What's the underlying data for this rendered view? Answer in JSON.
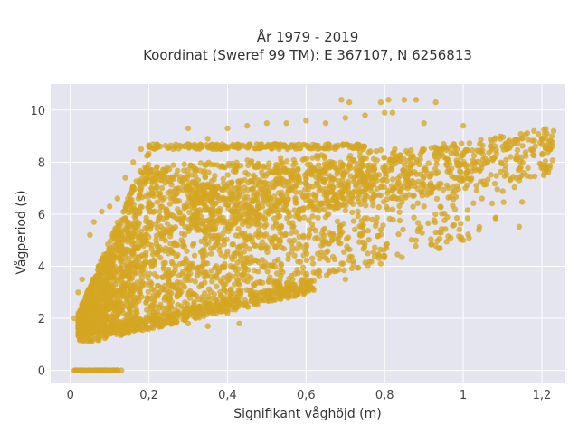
{
  "chart_data": {
    "type": "scatter",
    "title": [
      "År 1979 - 2019",
      "Koordinat (Sweref 99 TM): E 367107, N 6256813"
    ],
    "xlabel": "Signifikant våghöjd (m)",
    "ylabel": "Vågperiod (s)",
    "xlim": [
      -0.05,
      1.26
    ],
    "ylim": [
      -0.5,
      11
    ],
    "x_ticks": [
      0,
      0.2,
      0.4,
      0.6,
      0.8,
      1.0,
      1.2
    ],
    "x_tick_labels": [
      "0",
      "0,2",
      "0,4",
      "0,6",
      "0,8",
      "1",
      "1,2"
    ],
    "y_ticks": [
      0,
      2,
      4,
      6,
      8,
      10
    ],
    "y_tick_labels": [
      "0",
      "2",
      "4",
      "6",
      "8",
      "10"
    ],
    "grid": true,
    "background": "#e5e5f0",
    "marker_color": "#d4a521",
    "marker_opacity": 0.75,
    "series": [
      {
        "values_description_points": [
          [
            0.01,
            0
          ],
          [
            0.03,
            0
          ],
          [
            0.05,
            0
          ],
          [
            0.07,
            0
          ],
          [
            0.09,
            0
          ],
          [
            0.11,
            0
          ],
          [
            0.13,
            0
          ],
          [
            0.01,
            2.0
          ],
          [
            0.02,
            1.6
          ],
          [
            0.03,
            3.5
          ],
          [
            0.02,
            3.0
          ],
          [
            0.05,
            5.2
          ],
          [
            0.06,
            5.7
          ],
          [
            0.08,
            6.1
          ],
          [
            0.1,
            6.3
          ],
          [
            0.12,
            6.6
          ],
          [
            0.14,
            7.4
          ],
          [
            0.16,
            8.0
          ],
          [
            0.18,
            8.5
          ],
          [
            0.2,
            8.6
          ],
          [
            0.22,
            8.6
          ],
          [
            0.3,
            9.3
          ],
          [
            0.35,
            8.9
          ],
          [
            0.4,
            9.3
          ],
          [
            0.45,
            9.4
          ],
          [
            0.5,
            9.5
          ],
          [
            0.55,
            9.5
          ],
          [
            0.6,
            9.6
          ],
          [
            0.65,
            9.5
          ],
          [
            0.7,
            9.7
          ],
          [
            0.75,
            9.8
          ],
          [
            0.8,
            9.9
          ],
          [
            0.85,
            10.4
          ],
          [
            0.88,
            10.4
          ],
          [
            0.93,
            10.3
          ],
          [
            0.69,
            10.4
          ],
          [
            0.71,
            10.3
          ],
          [
            0.79,
            10.3
          ],
          [
            0.81,
            10.4
          ],
          [
            0.82,
            9.9
          ],
          [
            0.9,
            9.5
          ],
          [
            0.95,
            8.7
          ],
          [
            1.0,
            9.4
          ],
          [
            1.05,
            8.3
          ],
          [
            1.1,
            8.6
          ],
          [
            1.15,
            8.9
          ],
          [
            1.2,
            8.9
          ],
          [
            1.23,
            9.2
          ],
          [
            1.0,
            5.0
          ],
          [
            0.93,
            5.3
          ],
          [
            0.88,
            5.0
          ],
          [
            0.8,
            4.4
          ],
          [
            0.79,
            4.1
          ],
          [
            0.72,
            4.2
          ],
          [
            0.7,
            3.5
          ],
          [
            0.6,
            3.6
          ],
          [
            0.55,
            3.2
          ],
          [
            0.5,
            3.0
          ],
          [
            0.4,
            2.6
          ],
          [
            0.3,
            2.2
          ],
          [
            0.2,
            1.9
          ],
          [
            0.1,
            1.4
          ],
          [
            0.3,
            1.8
          ],
          [
            0.35,
            1.7
          ],
          [
            0.43,
            1.8
          ],
          [
            0.4,
            2.2
          ],
          [
            0.05,
            1.2
          ],
          [
            0.03,
            1.3
          ]
        ]
      }
    ]
  }
}
